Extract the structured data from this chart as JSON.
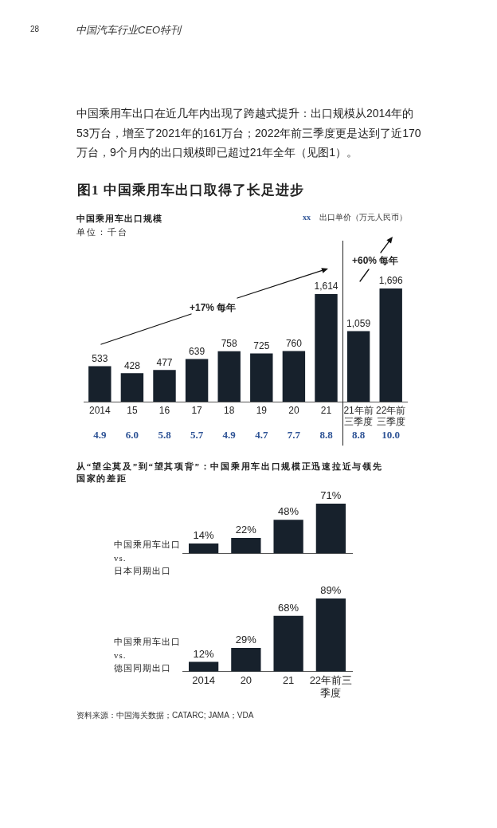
{
  "chart_data": [
    {
      "type": "bar",
      "title": "图1 中国乘用车出口取得了长足进步",
      "subtitle": "中国乘用车出口规模",
      "ylabel": "单位：千台",
      "categories": [
        "2014",
        "15",
        "16",
        "17",
        "18",
        "19",
        "20",
        "21",
        "21年前三季度",
        "22年前三季度"
      ],
      "values": [
        533,
        428,
        477,
        639,
        758,
        725,
        760,
        1614,
        1059,
        1696
      ],
      "value_labels": [
        "533",
        "428",
        "477",
        "639",
        "758",
        "725",
        "760",
        "1,614",
        "1,059",
        "1,696"
      ],
      "color": "#17212c",
      "tick_labels": "x",
      "annotations": [
        "28",
        "中国汽车行业CEO特刊",
        "中国乘用车出口在近几年内出现了跨越式提升：出口规模从2014年的53万台，增至了2021年的161万台；2022年前三季度更是达到了近170万台，9个月内的出口规模即已超过21年全年（见图1）。",
        "+17% 每年",
        "+60% 每年",
        "xx",
        "出口单价（万元人民币）",
        "4.9",
        "6.0",
        "5.8",
        "5.7",
        "4.9",
        "4.7",
        "7.7",
        "8.8",
        "8.8",
        "10.0"
      ]
    },
    {
      "type": "bar",
      "title": "从“望尘莫及”到“望其项背”：中国乘用车出口规模正迅速拉近与领先国家的差距",
      "ylabel": "中国乘用车出口\nvs.\n日本同期出口",
      "categories": [
        null,
        null,
        null,
        null
      ],
      "values": [
        14,
        22,
        48,
        71
      ],
      "value_labels": [
        "14%",
        "22%",
        "48%",
        "71%"
      ],
      "color": "#17212c",
      "tick_labels": "x"
    },
    {
      "type": "bar",
      "ylabel": "中国乘用车出口\nvs.\n德国同期出口",
      "categories": [
        "2014",
        "20",
        "21",
        "22年前三季度"
      ],
      "values": [
        12,
        29,
        68,
        89
      ],
      "value_labels": [
        "12%",
        "29%",
        "68%",
        "89%"
      ],
      "color": "#17212c",
      "tick_labels": "x",
      "annotations": [
        "资料来源：中国海关数据；CATARC; JAMA；VDA"
      ]
    }
  ]
}
